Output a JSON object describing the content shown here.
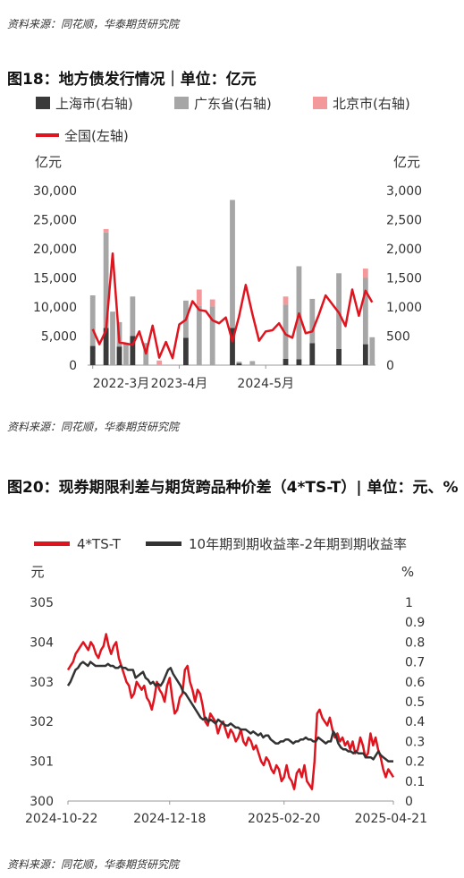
{
  "source_text": "资料来源：同花顺，华泰期货研究院",
  "charts": [
    {
      "title": "图18：地方债发行情况｜单位：亿元",
      "chart_data": {
        "type": "bar",
        "left_unit": "亿元",
        "right_unit": "亿元",
        "left_ticks": [
          "30,000",
          "25,000",
          "20,000",
          "15,000",
          "10,000",
          "5,000",
          "0"
        ],
        "right_ticks": [
          "3,000",
          "2,500",
          "2,000",
          "1,500",
          "1,000",
          "500",
          "0"
        ],
        "left_ylim": [
          0,
          30000
        ],
        "right_ylim": [
          0,
          3000
        ],
        "x_tick_labels": [
          "2022-3月",
          "2023-4月",
          "2024-5月"
        ],
        "x_tick_index": [
          0,
          13,
          26
        ],
        "legend": [
          {
            "name": "上海市(右轴)",
            "color": "#3a3a3a",
            "kind": "bar"
          },
          {
            "name": "广东省(右轴)",
            "color": "#a6a6a6",
            "kind": "bar"
          },
          {
            "name": "北京市(右轴)",
            "color": "#f4999b",
            "kind": "bar"
          },
          {
            "name": "全国(左轴)",
            "color": "#e0141e",
            "kind": "line"
          }
        ],
        "bar_series": [
          {
            "name": "上海市(右轴)",
            "color": "#3a3a3a",
            "values": [
              330,
              0,
              640,
              0,
              320,
              0,
              500,
              0,
              0,
              0,
              0,
              0,
              0,
              0,
              470,
              0,
              0,
              0,
              0,
              0,
              0,
              640,
              30,
              0,
              0,
              0,
              0,
              0,
              0,
              110,
              0,
              100,
              0,
              380,
              0,
              0,
              0,
              280,
              0,
              0,
              0,
              360,
              0
            ]
          },
          {
            "name": "广东省(右轴)",
            "color": "#a6a6a6",
            "values": [
              870,
              0,
              1640,
              920,
              420,
              360,
              680,
              0,
              380,
              0,
              0,
              0,
              0,
              0,
              640,
              0,
              1020,
              0,
              1010,
              0,
              0,
              2200,
              30,
              0,
              70,
              0,
              0,
              0,
              0,
              930,
              0,
              1600,
              0,
              760,
              0,
              0,
              0,
              1300,
              0,
              0,
              0,
              1140,
              480
            ]
          },
          {
            "name": "北京市(右轴)",
            "color": "#f4999b",
            "values": [
              0,
              0,
              60,
              0,
              0,
              0,
              0,
              0,
              0,
              0,
              80,
              0,
              0,
              0,
              0,
              0,
              280,
              0,
              120,
              0,
              0,
              0,
              0,
              0,
              0,
              0,
              0,
              0,
              0,
              140,
              0,
              0,
              0,
              0,
              0,
              0,
              0,
              0,
              0,
              0,
              0,
              160,
              0
            ]
          }
        ],
        "line_series": {
          "name": "全国(左轴)",
          "color": "#e0141e",
          "values": [
            6200,
            3600,
            6000,
            19200,
            3900,
            3700,
            3500,
            5800,
            2000,
            6800,
            1300,
            4000,
            1200,
            7000,
            7800,
            11000,
            9500,
            9300,
            7700,
            7200,
            8200,
            4100,
            8400,
            13800,
            8800,
            4200,
            5800,
            6000,
            7200,
            5300,
            4700,
            8900,
            5500,
            5800,
            8700,
            12000,
            10500,
            9000,
            6700,
            13000,
            8500,
            12800,
            10800
          ]
        }
      }
    },
    {
      "title": "图20：现券期限利差与期货跨品种价差（4*TS-T）| 单位：元、%",
      "chart_data": {
        "type": "line",
        "left_unit": "元",
        "right_unit": "%",
        "left_ticks": [
          "305",
          "304",
          "303",
          "302",
          "301",
          "300"
        ],
        "right_ticks": [
          "1",
          "0.9",
          "0.8",
          "0.7",
          "0.6",
          "0.5",
          "0.4",
          "0.3",
          "0.2",
          "0.1",
          "0"
        ],
        "left_ylim": [
          300,
          305
        ],
        "right_ylim": [
          0,
          1
        ],
        "x_tick_labels": [
          "2024-10-22",
          "2024-12-18",
          "2025-02-20",
          "2025-04-21"
        ],
        "x_tick_index": [
          0,
          40,
          85,
          128
        ],
        "legend": [
          {
            "name": "4*TS-T",
            "color": "#e0141e"
          },
          {
            "name": "10年期到期收益率-2年期到期收益率",
            "color": "#333333"
          }
        ],
        "series": [
          {
            "name": "4*TS-T",
            "color": "#e0141e",
            "axis": "left",
            "values": [
              303.3,
              303.4,
              303.5,
              303.7,
              303.8,
              303.9,
              304.0,
              303.9,
              303.8,
              304.0,
              303.9,
              303.7,
              303.6,
              303.8,
              303.9,
              304.2,
              303.9,
              303.7,
              303.9,
              304.0,
              303.6,
              303.4,
              303.2,
              303.0,
              302.9,
              302.6,
              302.7,
              303.0,
              302.9,
              302.8,
              302.9,
              302.6,
              302.5,
              302.3,
              302.6,
              303.0,
              302.8,
              302.7,
              302.5,
              302.9,
              303.1,
              302.6,
              302.2,
              302.3,
              302.6,
              302.7,
              303.3,
              303.4,
              303.0,
              302.8,
              302.5,
              302.8,
              302.7,
              302.4,
              302.0,
              301.9,
              302.2,
              302.1,
              302.0,
              301.7,
              301.9,
              302.0,
              301.8,
              301.6,
              301.8,
              301.7,
              301.5,
              301.6,
              301.8,
              301.5,
              301.4,
              301.6,
              301.5,
              301.3,
              301.4,
              301.2,
              301.0,
              300.9,
              301.1,
              301.0,
              300.8,
              300.7,
              300.9,
              300.8,
              300.5,
              300.6,
              300.9,
              300.6,
              300.5,
              300.3,
              300.7,
              300.8,
              300.6,
              300.9,
              300.5,
              300.4,
              300.3,
              301.0,
              302.2,
              302.3,
              302.1,
              302.0,
              301.9,
              302.1,
              301.8,
              301.6,
              301.7,
              301.5,
              301.6,
              301.4,
              301.5,
              301.3,
              301.5,
              301.2,
              301.3,
              301.6,
              301.4,
              301.1,
              301.2,
              301.7,
              301.4,
              301.6,
              301.3,
              301.1,
              300.8,
              300.6,
              300.8,
              300.7,
              300.6
            ]
          },
          {
            "name": "10年期到期收益率-2年期到期收益率",
            "color": "#333333",
            "axis": "right",
            "values": [
              0.58,
              0.6,
              0.63,
              0.66,
              0.67,
              0.69,
              0.7,
              0.69,
              0.68,
              0.7,
              0.69,
              0.68,
              0.68,
              0.68,
              0.68,
              0.68,
              0.69,
              0.68,
              0.68,
              0.67,
              0.67,
              0.68,
              0.67,
              0.67,
              0.66,
              0.66,
              0.66,
              0.62,
              0.63,
              0.64,
              0.65,
              0.62,
              0.61,
              0.59,
              0.6,
              0.58,
              0.59,
              0.58,
              0.6,
              0.63,
              0.66,
              0.67,
              0.64,
              0.62,
              0.6,
              0.58,
              0.55,
              0.54,
              0.52,
              0.5,
              0.48,
              0.46,
              0.44,
              0.42,
              0.41,
              0.42,
              0.4,
              0.41,
              0.4,
              0.39,
              0.41,
              0.4,
              0.39,
              0.38,
              0.38,
              0.39,
              0.38,
              0.37,
              0.37,
              0.36,
              0.36,
              0.36,
              0.35,
              0.34,
              0.35,
              0.34,
              0.33,
              0.34,
              0.32,
              0.33,
              0.33,
              0.31,
              0.3,
              0.29,
              0.29,
              0.3,
              0.3,
              0.31,
              0.31,
              0.3,
              0.29,
              0.3,
              0.3,
              0.31,
              0.31,
              0.32,
              0.31,
              0.31,
              0.3,
              0.3,
              0.32,
              0.31,
              0.3,
              0.29,
              0.3,
              0.3,
              0.35,
              0.33,
              0.29,
              0.27,
              0.26,
              0.26,
              0.25,
              0.25,
              0.24,
              0.25,
              0.24,
              0.24,
              0.24,
              0.22,
              0.22,
              0.22,
              0.21,
              0.23,
              0.25,
              0.23,
              0.22,
              0.21,
              0.2,
              0.2,
              0.2
            ]
          }
        ]
      }
    }
  ]
}
